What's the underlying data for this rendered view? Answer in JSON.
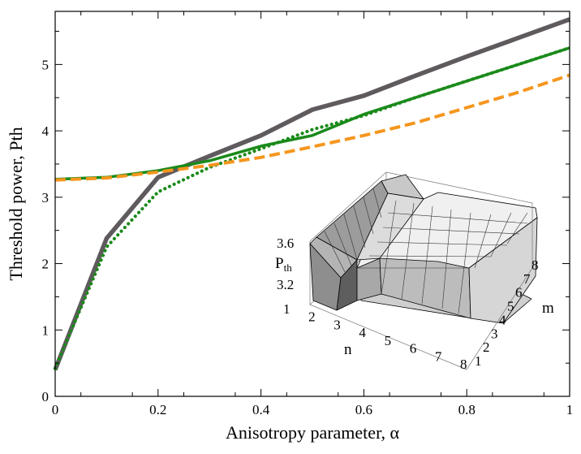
{
  "chart_data": {
    "type": "line",
    "title": "",
    "xlabel": "Anisotropy parameter, α",
    "ylabel": "Threshold power, Pth",
    "xlim": [
      0,
      1
    ],
    "ylim": [
      0,
      5.8
    ],
    "xticks": [
      0,
      0.2,
      0.4,
      0.6,
      0.8,
      1
    ],
    "xtick_labels": [
      "0",
      "0.2",
      "0.4",
      "0.6",
      "0.8",
      "1"
    ],
    "yticks": [
      0,
      1,
      2,
      3,
      4,
      5
    ],
    "ytick_labels": [
      "0",
      "1",
      "2",
      "3",
      "4",
      "5"
    ],
    "grid": false,
    "series": [
      {
        "color": "#5f5a5e",
        "style": "solid-thick",
        "x": [
          0,
          0.1,
          0.2,
          0.3,
          0.4,
          0.5,
          0.6,
          0.7,
          0.8,
          0.9,
          1.0
        ],
        "y": [
          0.4,
          2.38,
          3.3,
          3.62,
          3.93,
          4.32,
          4.53,
          4.83,
          5.12,
          5.4,
          5.68
        ]
      },
      {
        "color": "#1a8a1a",
        "style": "solid",
        "x": [
          0,
          0.1,
          0.2,
          0.3,
          0.4,
          0.5,
          0.6,
          0.7,
          0.8,
          0.9,
          1.0
        ],
        "y": [
          3.27,
          3.3,
          3.4,
          3.55,
          3.77,
          3.93,
          4.25,
          4.5,
          4.75,
          5.0,
          5.25
        ]
      },
      {
        "color": "#1a8a1a",
        "style": "dotted",
        "x": [
          0,
          0.1,
          0.2,
          0.3,
          0.4,
          0.5,
          0.6,
          0.7,
          0.8,
          0.9,
          1.0
        ],
        "y": [
          0.42,
          2.25,
          3.08,
          3.45,
          3.73,
          4.02,
          4.23,
          4.5,
          4.75,
          5.0,
          5.25
        ]
      },
      {
        "color": "#f5961e",
        "style": "dashed",
        "x": [
          0,
          0.1,
          0.2,
          0.3,
          0.4,
          0.5,
          0.6,
          0.7,
          0.8,
          0.9,
          1.0
        ],
        "y": [
          3.26,
          3.29,
          3.38,
          3.48,
          3.6,
          3.76,
          3.93,
          4.12,
          4.35,
          4.58,
          4.84
        ]
      }
    ],
    "inset": {
      "type": "surface-3d",
      "z_label": "P",
      "z_label_sub": "th",
      "z_ticks": [
        "3.6",
        "3.2"
      ],
      "n_label": "n",
      "m_label": "m",
      "n_ticks": [
        "1",
        "2",
        "3",
        "4",
        "5",
        "6",
        "7",
        "8"
      ],
      "m_ticks": [
        "1",
        "2",
        "3",
        "4",
        "5",
        "6",
        "7",
        "8"
      ]
    }
  }
}
